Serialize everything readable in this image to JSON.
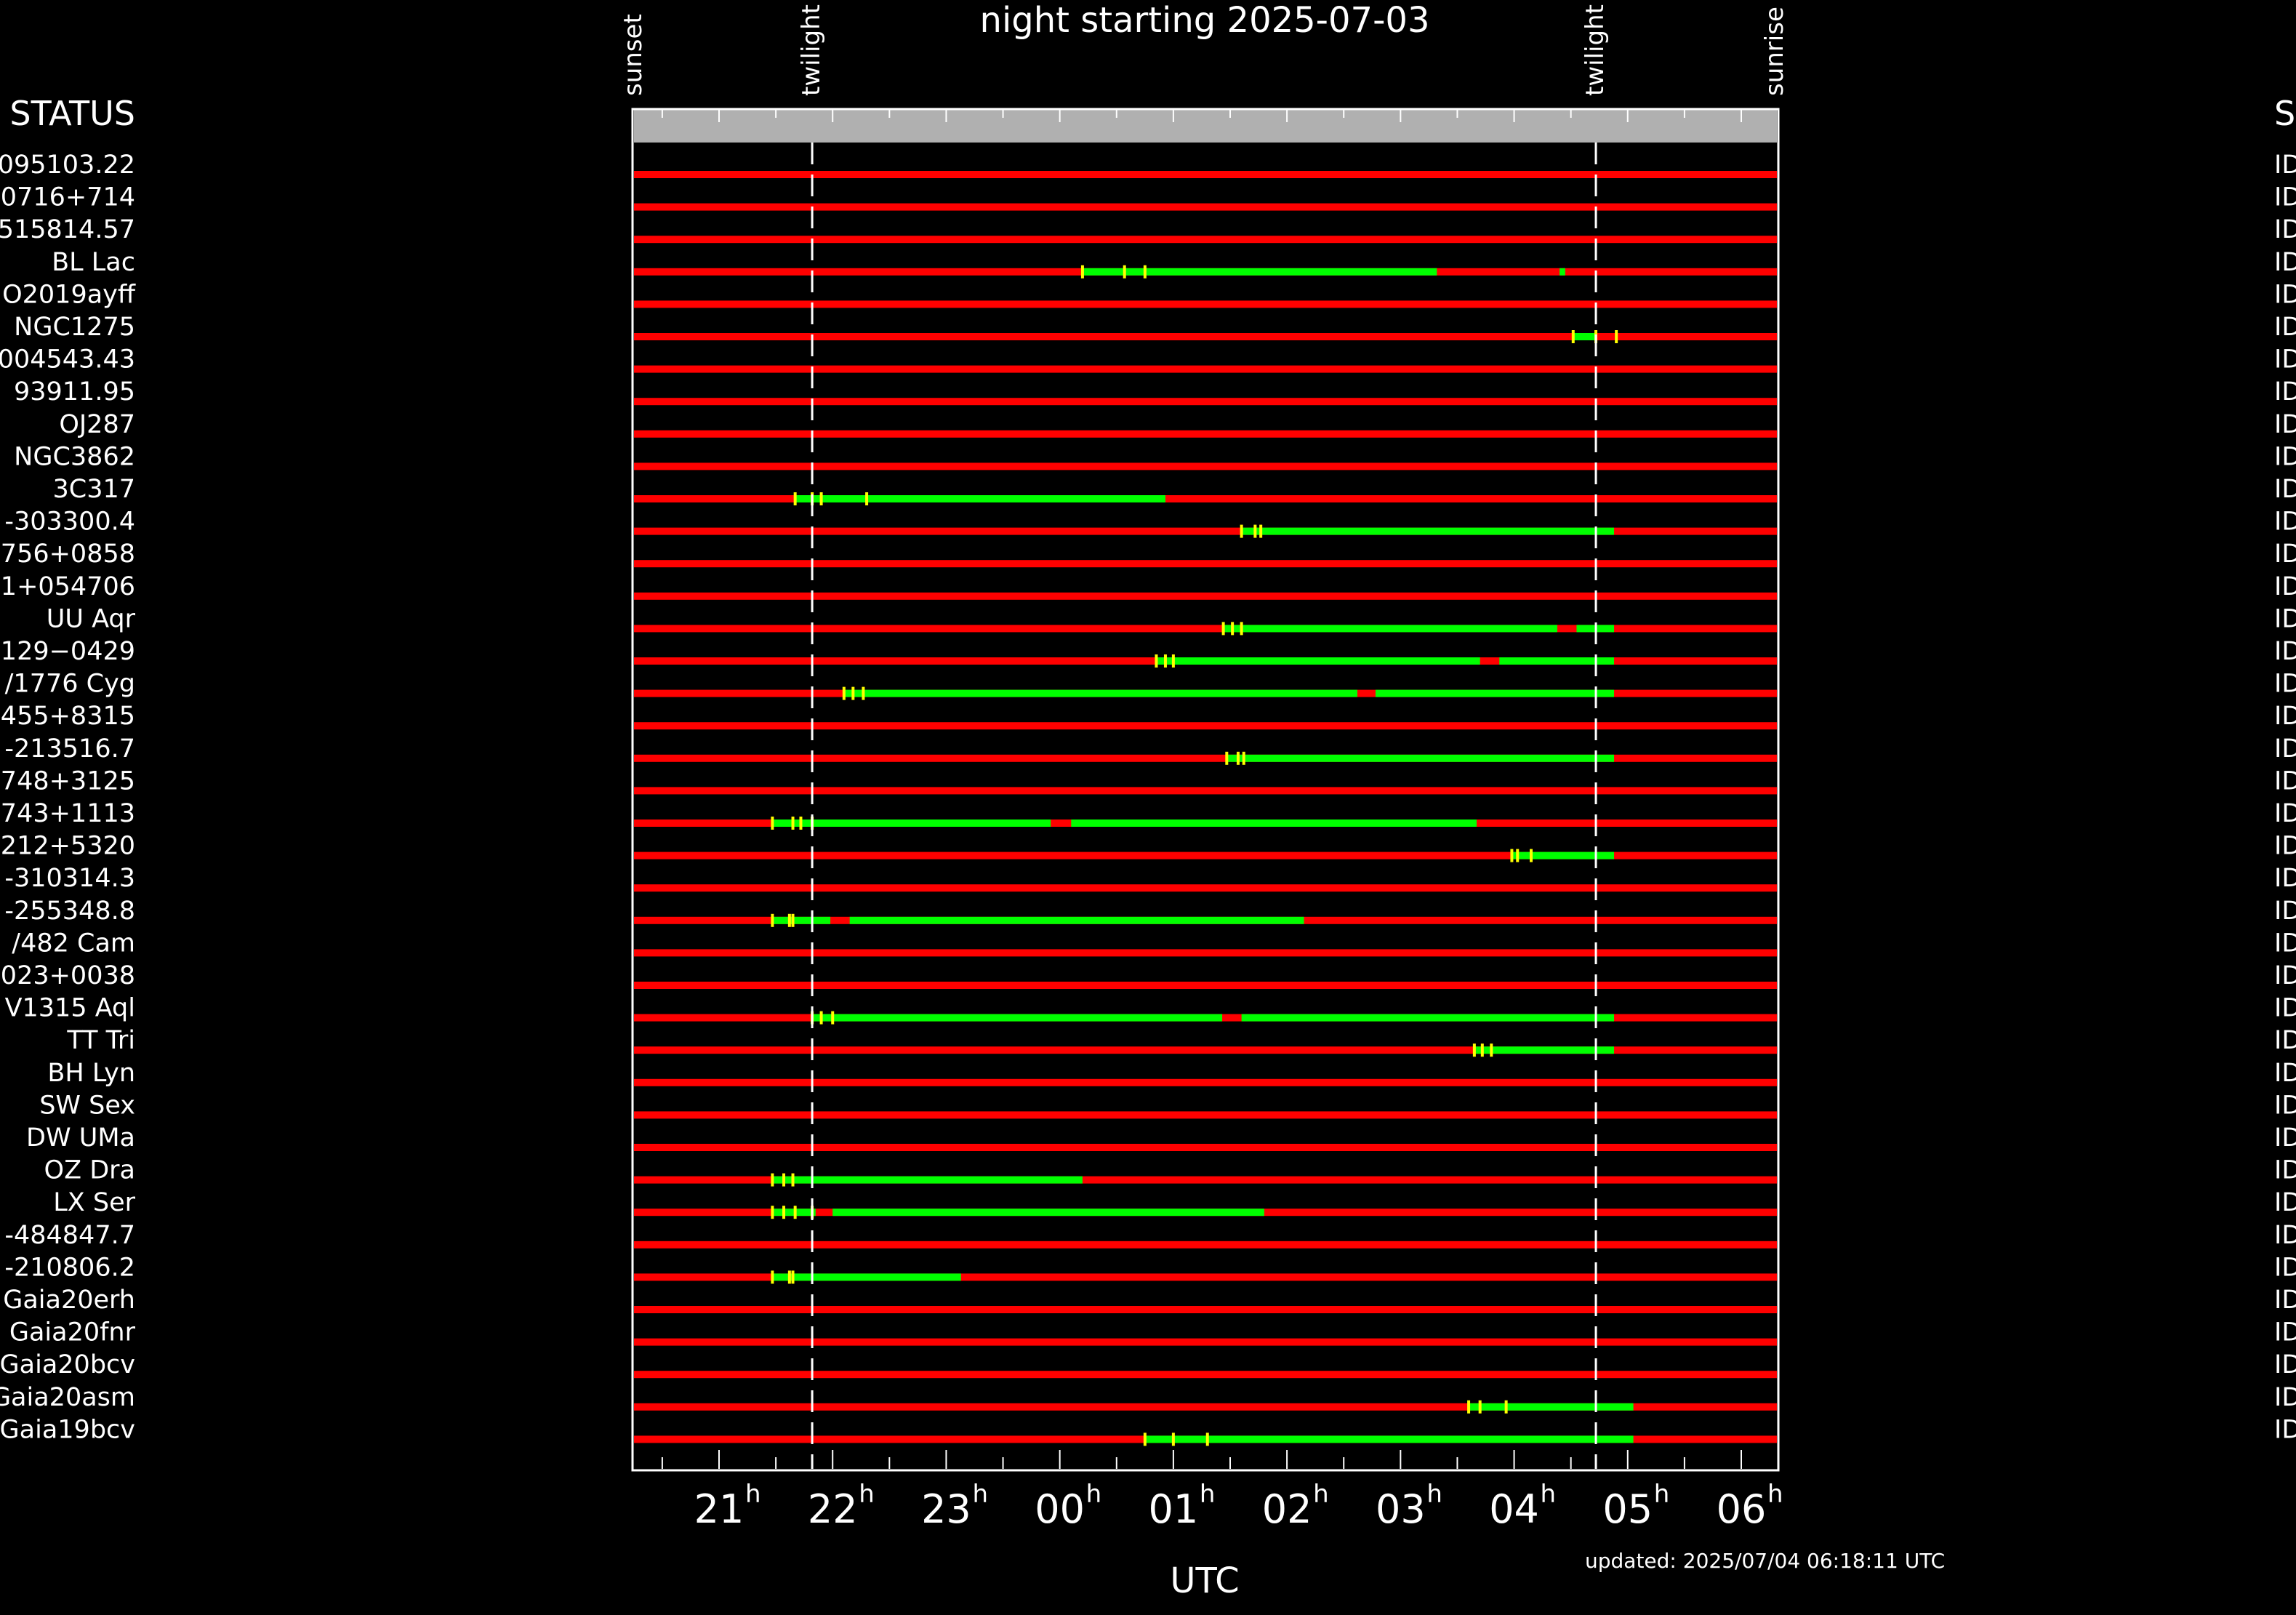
{
  "chart_data": {
    "type": "gantt",
    "title": "night starting 2025-07-03",
    "xlabel": "UTC",
    "updated": "updated: 2025/07/04 06:18:11 UTC",
    "status_header_left": "STATUS",
    "status_header_right": "S",
    "status_value_glyph": "ID",
    "x_axis": {
      "unit": "hours UTC",
      "range": [
        20.25,
        6.3
      ],
      "ticks": [
        {
          "hour": 21,
          "label": "21",
          "sup": "h"
        },
        {
          "hour": 22,
          "label": "22",
          "sup": "h"
        },
        {
          "hour": 23,
          "label": "23",
          "sup": "h"
        },
        {
          "hour": 24,
          "label": "00",
          "sup": "h"
        },
        {
          "hour": 25,
          "label": "01",
          "sup": "h"
        },
        {
          "hour": 26,
          "label": "02",
          "sup": "h"
        },
        {
          "hour": 27,
          "label": "03",
          "sup": "h"
        },
        {
          "hour": 28,
          "label": "04",
          "sup": "h"
        },
        {
          "hour": 29,
          "label": "05",
          "sup": "h"
        },
        {
          "hour": 30,
          "label": "06",
          "sup": "h"
        }
      ]
    },
    "markers": [
      {
        "label": "sunset",
        "hour": 20.2
      },
      {
        "label": "twilight",
        "hour": 21.82
      },
      {
        "label": "twilight",
        "hour": 28.72
      },
      {
        "label": "sunrise",
        "hour": 30.3
      }
    ],
    "colors": {
      "not_observable": "#ff0000",
      "observable": "#00ff00",
      "tick": "#ffff00",
      "header_band": "#b0b0b0"
    },
    "targets": [
      {
        "name": "095103.22",
        "segments": [],
        "ticks": []
      },
      {
        "name": "0716+714",
        "segments": [],
        "ticks": []
      },
      {
        "name": "515814.57",
        "segments": [],
        "ticks": []
      },
      {
        "name": "BL Lac",
        "segments": [
          [
            24.2,
            27.32
          ],
          [
            28.4,
            28.45
          ]
        ],
        "ticks": [
          24.2,
          24.57,
          24.75
        ]
      },
      {
        "name": "O2019ayff",
        "segments": [],
        "ticks": []
      },
      {
        "name": "NGC1275",
        "segments": [
          [
            28.52,
            28.72
          ]
        ],
        "ticks": [
          28.52,
          28.72,
          28.9
        ]
      },
      {
        "name": "004543.43",
        "segments": [],
        "ticks": []
      },
      {
        "name": "93911.95",
        "segments": [],
        "ticks": []
      },
      {
        "name": "OJ287",
        "segments": [],
        "ticks": []
      },
      {
        "name": "NGC3862",
        "segments": [],
        "ticks": []
      },
      {
        "name": "3C317",
        "segments": [
          [
            21.67,
            24.93
          ]
        ],
        "ticks": [
          21.67,
          21.82,
          21.9,
          22.3
        ]
      },
      {
        "name": "-303300.4",
        "segments": [
          [
            25.6,
            28.88
          ]
        ],
        "ticks": [
          25.6,
          25.72,
          25.77
        ]
      },
      {
        "name": "756+0858",
        "segments": [],
        "ticks": []
      },
      {
        "name": "1+054706",
        "segments": [],
        "ticks": []
      },
      {
        "name": "UU Aqr",
        "segments": [
          [
            25.44,
            28.38
          ],
          [
            28.55,
            28.88
          ]
        ],
        "ticks": [
          25.44,
          25.52,
          25.6
        ]
      },
      {
        "name": "129−0429",
        "segments": [
          [
            24.85,
            27.7
          ],
          [
            27.87,
            28.88
          ]
        ],
        "ticks": [
          24.85,
          24.93,
          25.0
        ]
      },
      {
        "name": "/1776 Cyg",
        "segments": [
          [
            22.1,
            26.62
          ],
          [
            26.78,
            28.88
          ]
        ],
        "ticks": [
          22.1,
          22.18,
          22.27
        ]
      },
      {
        "name": "455+8315",
        "segments": [],
        "ticks": []
      },
      {
        "name": "-213516.7",
        "segments": [
          [
            25.47,
            28.88
          ]
        ],
        "ticks": [
          25.47,
          25.57,
          25.62
        ]
      },
      {
        "name": "748+3125",
        "segments": [],
        "ticks": []
      },
      {
        "name": "743+1113",
        "segments": [
          [
            21.47,
            23.92
          ],
          [
            24.1,
            27.67
          ]
        ],
        "ticks": [
          21.47,
          21.65,
          21.72,
          21.82
        ]
      },
      {
        "name": "212+5320",
        "segments": [
          [
            27.98,
            28.88
          ]
        ],
        "ticks": [
          27.98,
          28.03,
          28.15
        ]
      },
      {
        "name": "-310314.3",
        "segments": [],
        "ticks": []
      },
      {
        "name": "-255348.8",
        "segments": [
          [
            21.47,
            21.98
          ],
          [
            22.15,
            26.15
          ]
        ],
        "ticks": [
          21.47,
          21.62,
          21.65
        ]
      },
      {
        "name": "/482 Cam",
        "segments": [],
        "ticks": []
      },
      {
        "name": "023+0038",
        "segments": [],
        "ticks": []
      },
      {
        "name": "V1315 Aql",
        "segments": [
          [
            21.82,
            25.43
          ],
          [
            25.6,
            28.88
          ]
        ],
        "ticks": [
          21.82,
          21.9,
          22.0
        ]
      },
      {
        "name": "TT Tri",
        "segments": [
          [
            27.65,
            28.88
          ]
        ],
        "ticks": [
          27.65,
          27.72,
          27.8
        ]
      },
      {
        "name": "BH Lyn",
        "segments": [],
        "ticks": []
      },
      {
        "name": "SW Sex",
        "segments": [],
        "ticks": []
      },
      {
        "name": "DW UMa",
        "segments": [],
        "ticks": []
      },
      {
        "name": "OZ Dra",
        "segments": [
          [
            21.47,
            24.2
          ]
        ],
        "ticks": [
          21.47,
          21.57,
          21.65
        ]
      },
      {
        "name": "LX Ser",
        "segments": [
          [
            21.47,
            21.85
          ],
          [
            22.0,
            25.8
          ]
        ],
        "ticks": [
          21.47,
          21.57,
          21.67,
          21.82
        ]
      },
      {
        "name": "-484847.7",
        "segments": [],
        "ticks": []
      },
      {
        "name": "-210806.2",
        "segments": [
          [
            21.47,
            23.13
          ]
        ],
        "ticks": [
          21.47,
          21.62,
          21.65
        ]
      },
      {
        "name": "Gaia20erh",
        "segments": [],
        "ticks": []
      },
      {
        "name": "Gaia20fnr",
        "segments": [],
        "ticks": []
      },
      {
        "name": "Gaia20bcv",
        "segments": [],
        "ticks": []
      },
      {
        "name": "Gaia20asm",
        "segments": [
          [
            27.6,
            29.05
          ]
        ],
        "ticks": [
          27.6,
          27.7,
          27.93
        ]
      },
      {
        "name": "Gaia19bcv",
        "segments": [
          [
            24.75,
            29.05
          ]
        ],
        "ticks": [
          24.75,
          25.0,
          25.3
        ]
      }
    ]
  }
}
